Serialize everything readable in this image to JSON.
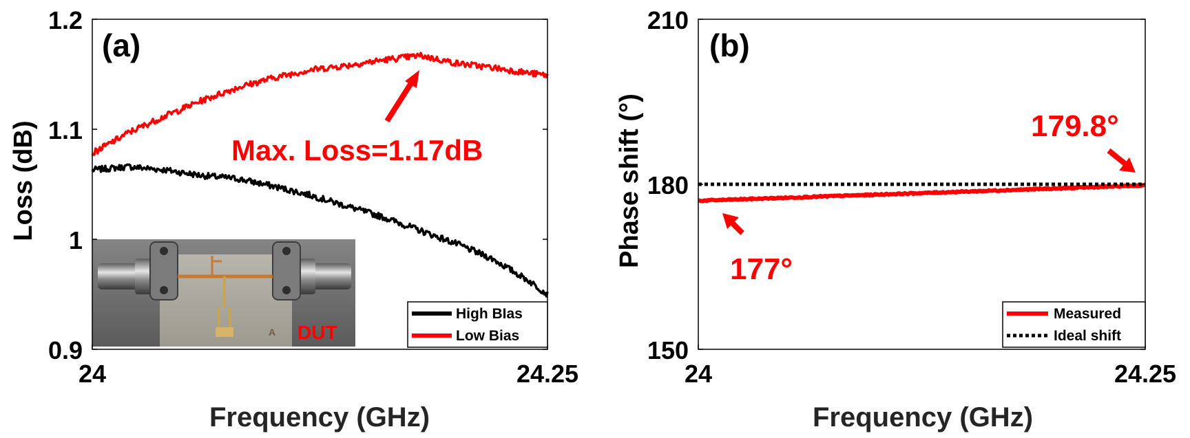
{
  "chart_data": [
    {
      "panel": "(a)",
      "type": "line",
      "xlabel": "Frequency (GHz)",
      "ylabel": "Loss (dB)",
      "xlim": [
        24,
        24.25
      ],
      "ylim": [
        0.9,
        1.2
      ],
      "xticks": [
        "24",
        "24.25"
      ],
      "yticks": [
        "0.9",
        "1",
        "1.1",
        "1.2"
      ],
      "grid": false,
      "legend_position": "bottom-right",
      "series": [
        {
          "name": "High Bias",
          "legend_label": "High BIas",
          "color": "#000000",
          "x": [
            24.0,
            24.02,
            24.04,
            24.06,
            24.08,
            24.1,
            24.12,
            24.14,
            24.16,
            24.18,
            24.2,
            24.22,
            24.24,
            24.25
          ],
          "y": [
            1.063,
            1.066,
            1.063,
            1.058,
            1.055,
            1.048,
            1.04,
            1.03,
            1.02,
            1.008,
            0.996,
            0.982,
            0.962,
            0.95
          ]
        },
        {
          "name": "Low Bias",
          "legend_label": "Low Bias",
          "color": "#ff0000",
          "x": [
            24.0,
            24.02,
            24.04,
            24.06,
            24.08,
            24.1,
            24.12,
            24.14,
            24.16,
            24.18,
            24.2,
            24.22,
            24.24,
            24.25
          ],
          "y": [
            1.078,
            1.097,
            1.112,
            1.126,
            1.138,
            1.147,
            1.154,
            1.158,
            1.163,
            1.167,
            1.16,
            1.156,
            1.151,
            1.149
          ]
        }
      ],
      "annotations": [
        {
          "text": "Max. Loss=1.17dB",
          "color": "#ff0000",
          "x": 24.178,
          "y": 1.166
        }
      ],
      "inset": {
        "label": "DUT",
        "label_color": "#ff0000",
        "stamp_mark": "A"
      }
    },
    {
      "panel": "(b)",
      "type": "line",
      "xlabel": "Frequency (GHz)",
      "ylabel": "Phase shift (°)",
      "xlim": [
        24,
        24.25
      ],
      "ylim": [
        150,
        210
      ],
      "xticks": [
        "24",
        "24.25"
      ],
      "yticks": [
        "150",
        "180",
        "210"
      ],
      "grid": false,
      "legend_position": "bottom-right",
      "series": [
        {
          "name": "Measured",
          "color": "#ff0000",
          "style": "solid",
          "x": [
            24.0,
            24.25
          ],
          "y": [
            177.0,
            179.8
          ]
        },
        {
          "name": "Ideal shift",
          "color": "#000000",
          "style": "dotted",
          "x": [
            24.0,
            24.25
          ],
          "y": [
            180,
            180
          ]
        }
      ],
      "annotations": [
        {
          "text": "177°",
          "color": "#ff0000",
          "x": 24.0,
          "y": 177.0
        },
        {
          "text": "179.8°",
          "color": "#ff0000",
          "x": 24.25,
          "y": 179.8
        }
      ]
    }
  ]
}
